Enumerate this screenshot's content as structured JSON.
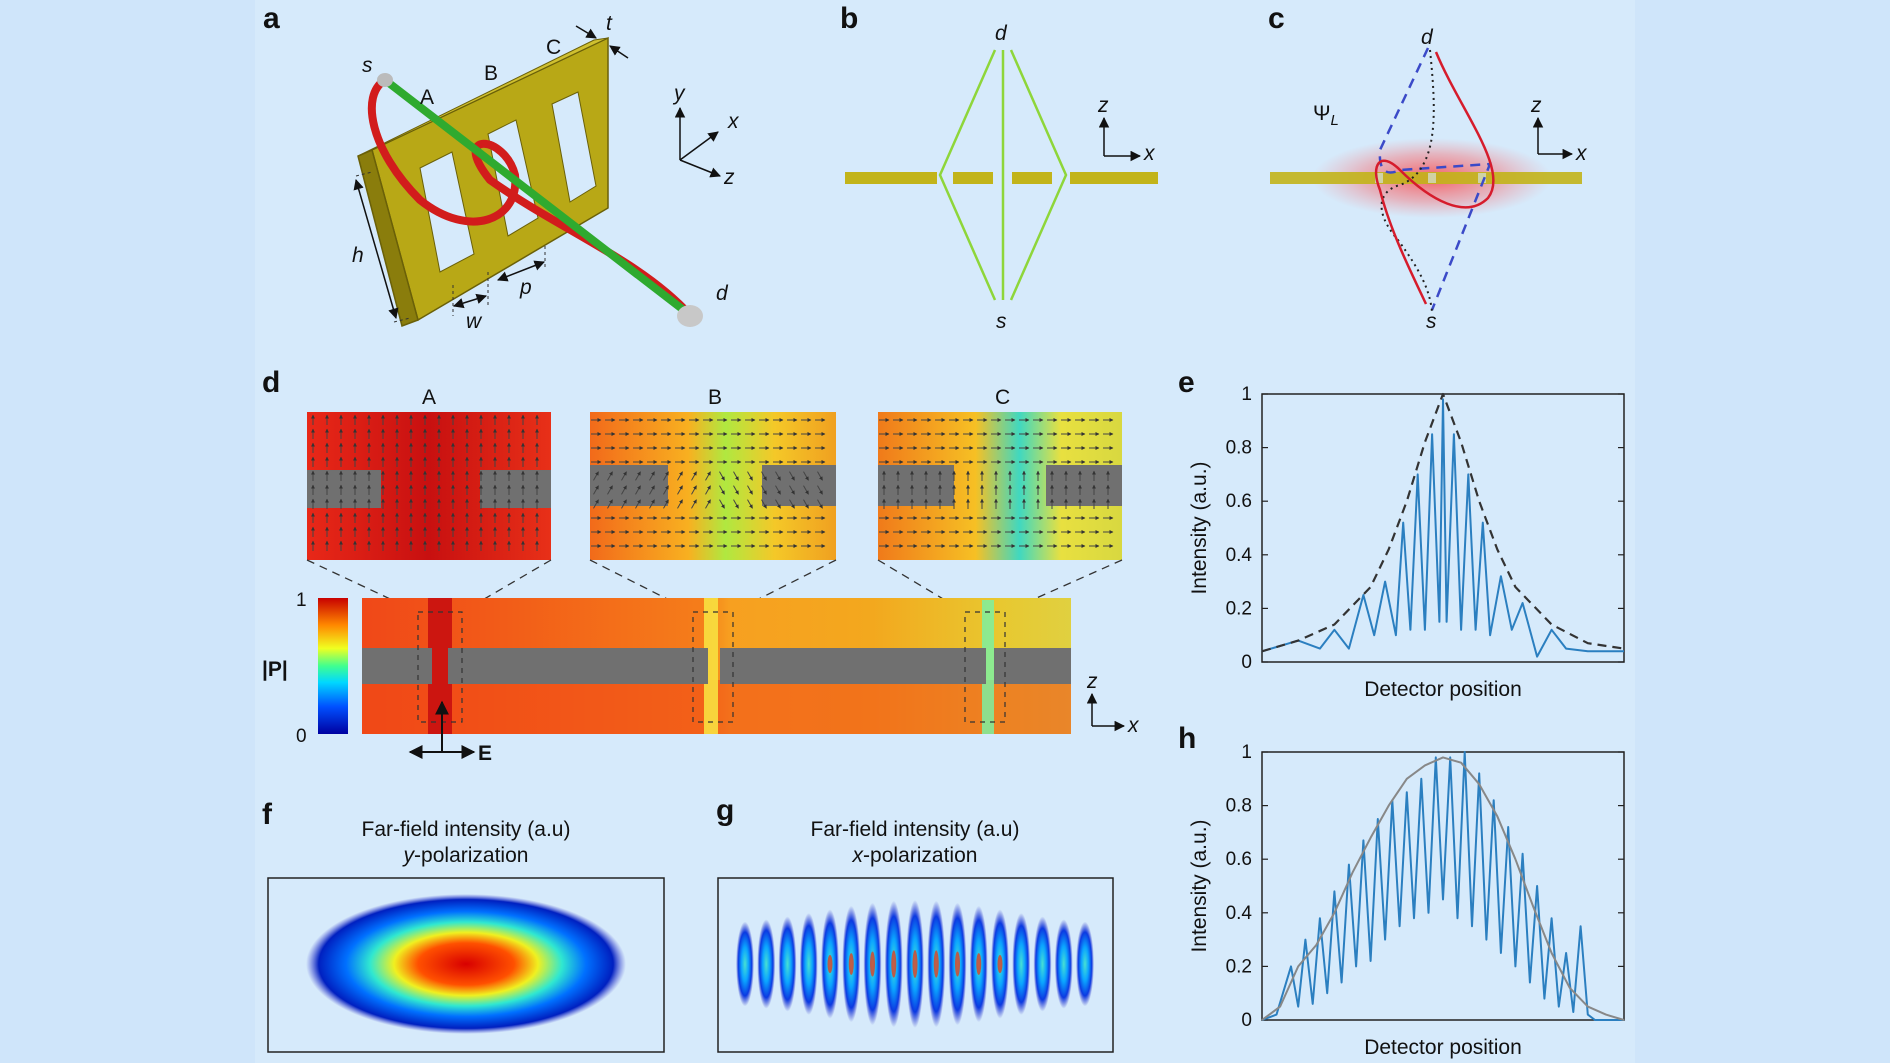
{
  "panels": {
    "a": "a",
    "b": "b",
    "c": "c",
    "d": "d",
    "e": "e",
    "f": "f",
    "g": "g",
    "h": "h"
  },
  "panel_a": {
    "labels": {
      "s": "s",
      "d": "d",
      "A": "A",
      "B": "B",
      "C": "C",
      "t": "t",
      "h": "h",
      "w": "w",
      "p": "p"
    },
    "axes": {
      "y": "y",
      "x": "x",
      "z": "z"
    }
  },
  "panel_b": {
    "d": "d",
    "s": "s",
    "z": "z",
    "x": "x"
  },
  "panel_c": {
    "d": "d",
    "s": "s",
    "z": "z",
    "x": "x",
    "psi": "Ψ",
    "psi_sub": "L"
  },
  "panel_d": {
    "A": "A",
    "B": "B",
    "C": "C",
    "colorbar_max": "1",
    "colorbar_min": "0",
    "colorbar_label": "|P|",
    "E": "E",
    "z": "z",
    "x": "x"
  },
  "panel_f": {
    "title1": "Far-field intensity (a.u)",
    "title2_var": "y",
    "title2_rest": "-polarization"
  },
  "panel_g": {
    "title1": "Far-field intensity (a.u)",
    "title2_var": "x",
    "title2_rest": "-polarization"
  },
  "chart_data": [
    {
      "panel": "e",
      "type": "line",
      "xlabel": "Detector position",
      "ylabel": "Intensity (a.u.)",
      "ylim": [
        0,
        1
      ],
      "yticks": [
        "0",
        "0.2",
        "0.4",
        "0.6",
        "0.8",
        "1"
      ],
      "series": [
        {
          "style": "solid",
          "color": "#2b7fc0",
          "x": [
            0,
            0.1,
            0.16,
            0.2,
            0.24,
            0.28,
            0.31,
            0.34,
            0.37,
            0.39,
            0.41,
            0.43,
            0.45,
            0.47,
            0.49,
            0.5,
            0.51,
            0.53,
            0.55,
            0.57,
            0.59,
            0.61,
            0.63,
            0.66,
            0.69,
            0.72,
            0.76,
            0.8,
            0.84,
            0.9,
            1
          ],
          "y": [
            0.04,
            0.08,
            0.05,
            0.12,
            0.05,
            0.25,
            0.1,
            0.3,
            0.1,
            0.52,
            0.12,
            0.7,
            0.12,
            0.85,
            0.15,
            0.98,
            0.15,
            0.85,
            0.12,
            0.7,
            0.12,
            0.52,
            0.1,
            0.32,
            0.12,
            0.22,
            0.02,
            0.12,
            0.05,
            0.04,
            0.04
          ]
        },
        {
          "style": "dashed",
          "color": "#333333",
          "x": [
            0,
            0.1,
            0.2,
            0.3,
            0.35,
            0.4,
            0.45,
            0.5,
            0.55,
            0.6,
            0.65,
            0.7,
            0.8,
            0.9,
            1
          ],
          "y": [
            0.04,
            0.08,
            0.14,
            0.28,
            0.42,
            0.6,
            0.82,
            1.0,
            0.82,
            0.6,
            0.42,
            0.28,
            0.14,
            0.07,
            0.05
          ]
        }
      ]
    },
    {
      "panel": "h",
      "type": "line",
      "xlabel": "Detector position",
      "ylabel": "Intensity (a.u.)",
      "ylim": [
        0,
        1
      ],
      "yticks": [
        "0",
        "0.2",
        "0.4",
        "0.6",
        "0.8",
        "1"
      ],
      "series": [
        {
          "style": "solid",
          "color": "#2b7fc0",
          "x": [
            0,
            0.04,
            0.08,
            0.1,
            0.12,
            0.14,
            0.16,
            0.18,
            0.2,
            0.22,
            0.24,
            0.26,
            0.28,
            0.3,
            0.32,
            0.34,
            0.36,
            0.38,
            0.4,
            0.42,
            0.44,
            0.46,
            0.48,
            0.5,
            0.52,
            0.54,
            0.56,
            0.58,
            0.6,
            0.62,
            0.64,
            0.66,
            0.68,
            0.7,
            0.72,
            0.74,
            0.76,
            0.78,
            0.8,
            0.82,
            0.84,
            0.86,
            0.88,
            0.9,
            0.92,
            0.96,
            1
          ],
          "y": [
            0,
            0.02,
            0.2,
            0.05,
            0.3,
            0.06,
            0.38,
            0.1,
            0.48,
            0.14,
            0.58,
            0.2,
            0.67,
            0.22,
            0.75,
            0.3,
            0.82,
            0.35,
            0.85,
            0.38,
            0.9,
            0.4,
            0.98,
            0.45,
            0.98,
            0.38,
            1.0,
            0.35,
            0.92,
            0.3,
            0.82,
            0.25,
            0.72,
            0.2,
            0.62,
            0.14,
            0.5,
            0.08,
            0.38,
            0.05,
            0.25,
            0.03,
            0.35,
            0.02,
            0.0,
            0.0,
            0.0
          ]
        },
        {
          "style": "solid",
          "color": "#888888",
          "x": [
            0,
            0.05,
            0.1,
            0.15,
            0.2,
            0.25,
            0.3,
            0.35,
            0.4,
            0.45,
            0.5,
            0.55,
            0.6,
            0.65,
            0.7,
            0.75,
            0.8,
            0.85,
            0.9,
            0.95,
            1
          ],
          "y": [
            0,
            0.05,
            0.2,
            0.28,
            0.4,
            0.55,
            0.68,
            0.8,
            0.9,
            0.95,
            0.98,
            0.96,
            0.88,
            0.76,
            0.6,
            0.42,
            0.25,
            0.12,
            0.05,
            0.02,
            0.0
          ]
        }
      ]
    }
  ]
}
